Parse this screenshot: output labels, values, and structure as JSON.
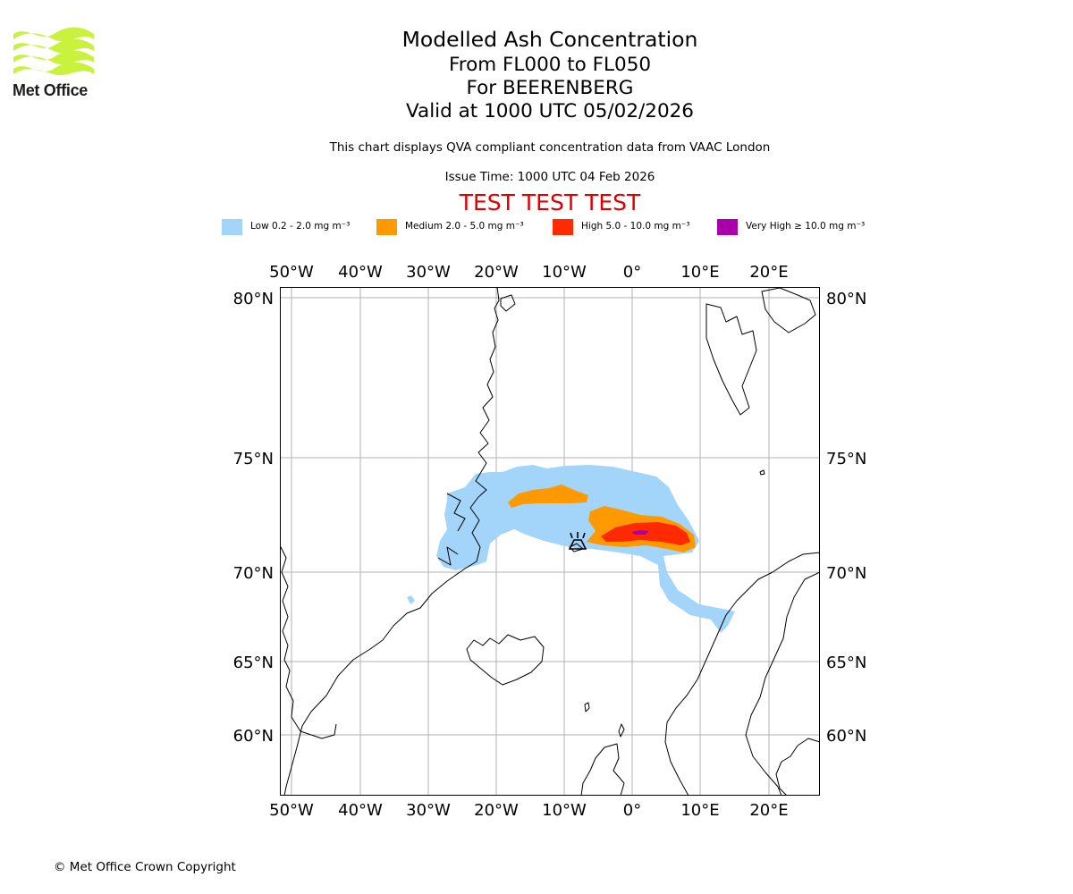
{
  "header": {
    "logo_text": "Met Office",
    "title": "Modelled Ash Concentration",
    "flight_levels": "From FL000 to FL050",
    "volcano": "For BEERENBERG",
    "valid_time": "Valid at 1000 UTC 05/02/2026",
    "compliance_note": "This chart displays QVA compliant concentration data from VAAC London",
    "issue_time": "Issue Time: 1000 UTC 04 Feb 2026",
    "test_banner": "TEST TEST TEST"
  },
  "legend": [
    {
      "label": "Low 0.2 - 2.0 mg m⁻³",
      "color": "#a3d4fa"
    },
    {
      "label": "Medium 2.0 - 5.0 mg m⁻³",
      "color": "#ff9900"
    },
    {
      "label": "High 5.0 - 10.0 mg m⁻³",
      "color": "#ff2a00"
    },
    {
      "label": "Very High ≥ 10.0 mg m⁻³",
      "color": "#aa00aa"
    }
  ],
  "map": {
    "lon_labels": [
      "50°W",
      "40°W",
      "30°W",
      "20°W",
      "10°W",
      "0°",
      "10°E",
      "20°E"
    ],
    "lat_labels": [
      "80°N",
      "75°N",
      "70°N",
      "65°N",
      "60°N"
    ],
    "grid_color": "#b0b0b0",
    "volcano_marker": "volcano-icon"
  },
  "footer": {
    "copyright": "© Met Office Crown Copyright"
  }
}
